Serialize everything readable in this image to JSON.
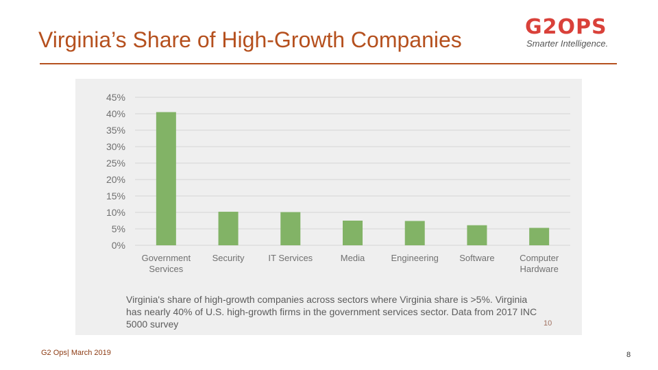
{
  "slide": {
    "title": "Virginia’s Share of High-Growth Companies",
    "logo_word": "G2OPS",
    "logo_tagline": "Smarter Intelligence.",
    "footer_left": "G2 Ops| March 2019",
    "page_number": "8",
    "caption": "Virginia's share of high-growth companies across sectors where Virginia  share is >5%. Virginia has nearly 40% of U.S. high-growth firms in the government services sector. Data from 2017 INC 5000 survey",
    "figure_number": "10"
  },
  "colors": {
    "accent": "#b5501e",
    "bar": "#82b366",
    "grid": "#d6d6d6",
    "axis_text": "#707070",
    "logo": "#d9413a"
  },
  "chart_data": {
    "type": "bar",
    "title": "",
    "xlabel": "",
    "ylabel": "",
    "ylim": [
      0,
      45
    ],
    "yticks": [
      0,
      5,
      10,
      15,
      20,
      25,
      30,
      35,
      40,
      45
    ],
    "ytick_labels": [
      "0%",
      "5%",
      "10%",
      "15%",
      "20%",
      "25%",
      "30%",
      "35%",
      "40%",
      "45%"
    ],
    "categories": [
      [
        "Government",
        "Services"
      ],
      [
        "Security"
      ],
      [
        "IT Services"
      ],
      [
        "Media"
      ],
      [
        "Engineering"
      ],
      [
        "Software"
      ],
      [
        "Computer",
        "Hardware"
      ]
    ],
    "values": [
      40.5,
      10.2,
      10.1,
      7.5,
      7.4,
      6.1,
      5.3
    ],
    "grid": true,
    "legend": "none"
  }
}
